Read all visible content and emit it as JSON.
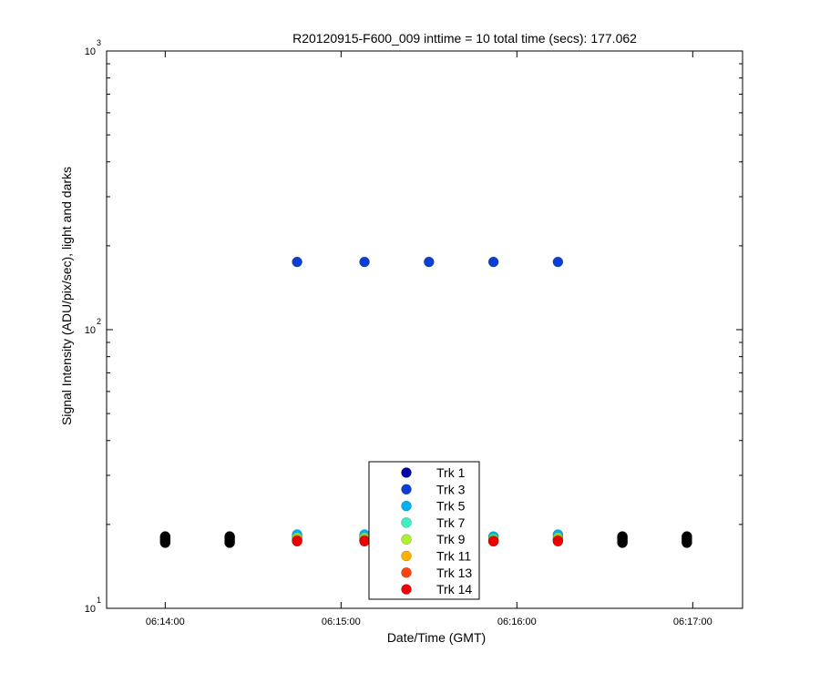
{
  "chart_data": {
    "type": "scatter",
    "title": "R20120915-F600_009 inttime = 10 total time (secs): 177.062",
    "xlabel": "Date/Time (GMT)",
    "ylabel": "Signal Intensity (ADU/pix/sec), light and darks",
    "y_scale": "log",
    "ylim": [
      10,
      1000
    ],
    "xlim": [
      "06:13:40",
      "06:17:17"
    ],
    "x_ticks": [
      "06:14:00",
      "06:15:00",
      "06:16:00",
      "06:17:00"
    ],
    "y_ticks": [
      {
        "base": "10",
        "exp": "1",
        "value": 10
      },
      {
        "base": "10",
        "exp": "2",
        "value": 100
      },
      {
        "base": "10",
        "exp": "3",
        "value": 1000
      }
    ],
    "grid": false,
    "legend_position": "bottom-center",
    "series": [
      {
        "name": "Trk 1",
        "color": "#0000a6",
        "points": []
      },
      {
        "name": "Trk 3",
        "color": "#0a3fd6",
        "points": [
          [
            "06:14:45",
            175
          ],
          [
            "06:15:08",
            175
          ],
          [
            "06:15:30",
            175
          ],
          [
            "06:15:52",
            175
          ],
          [
            "06:16:14",
            175
          ]
        ]
      },
      {
        "name": "Trk 5",
        "color": "#00b0f0",
        "points": [
          [
            "06:14:45",
            18.4
          ],
          [
            "06:15:08",
            18.4
          ],
          [
            "06:15:52",
            18.1
          ],
          [
            "06:16:14",
            18.4
          ]
        ]
      },
      {
        "name": "Trk 7",
        "color": "#3cf0c0",
        "points": [
          [
            "06:14:45",
            18.0
          ],
          [
            "06:15:08",
            18.0
          ],
          [
            "06:15:52",
            17.8
          ],
          [
            "06:16:14",
            18.0
          ]
        ]
      },
      {
        "name": "Trk 9",
        "color": "#b0f030",
        "points": [
          [
            "06:14:45",
            17.8
          ],
          [
            "06:15:08",
            17.8
          ],
          [
            "06:15:52",
            17.6
          ],
          [
            "06:16:14",
            17.8
          ]
        ]
      },
      {
        "name": "Trk 11",
        "color": "#ffb000",
        "points": [
          [
            "06:14:45",
            17.6
          ],
          [
            "06:15:08",
            17.6
          ],
          [
            "06:15:52",
            17.5
          ],
          [
            "06:16:14",
            17.6
          ]
        ]
      },
      {
        "name": "Trk 13",
        "color": "#ff4010",
        "points": [
          [
            "06:14:45",
            17.5
          ],
          [
            "06:15:08",
            17.5
          ],
          [
            "06:15:52",
            17.4
          ],
          [
            "06:16:14",
            17.5
          ]
        ]
      },
      {
        "name": "Trk 14",
        "color": "#ee0000",
        "points": [
          [
            "06:14:45",
            17.4
          ],
          [
            "06:15:08",
            17.4
          ],
          [
            "06:15:52",
            17.4
          ],
          [
            "06:16:14",
            17.4
          ]
        ]
      }
    ],
    "dark_series": {
      "color": "#000000",
      "points": [
        [
          "06:14:00",
          18.1
        ],
        [
          "06:14:00",
          17.8
        ],
        [
          "06:14:00",
          17.5
        ],
        [
          "06:14:00",
          17.2
        ],
        [
          "06:14:22",
          18.1
        ],
        [
          "06:14:22",
          17.8
        ],
        [
          "06:14:22",
          17.5
        ],
        [
          "06:14:22",
          17.2
        ],
        [
          "06:16:36",
          18.1
        ],
        [
          "06:16:36",
          17.8
        ],
        [
          "06:16:36",
          17.5
        ],
        [
          "06:16:36",
          17.2
        ],
        [
          "06:16:58",
          18.1
        ],
        [
          "06:16:58",
          17.8
        ],
        [
          "06:16:58",
          17.5
        ],
        [
          "06:16:58",
          17.2
        ]
      ]
    }
  }
}
